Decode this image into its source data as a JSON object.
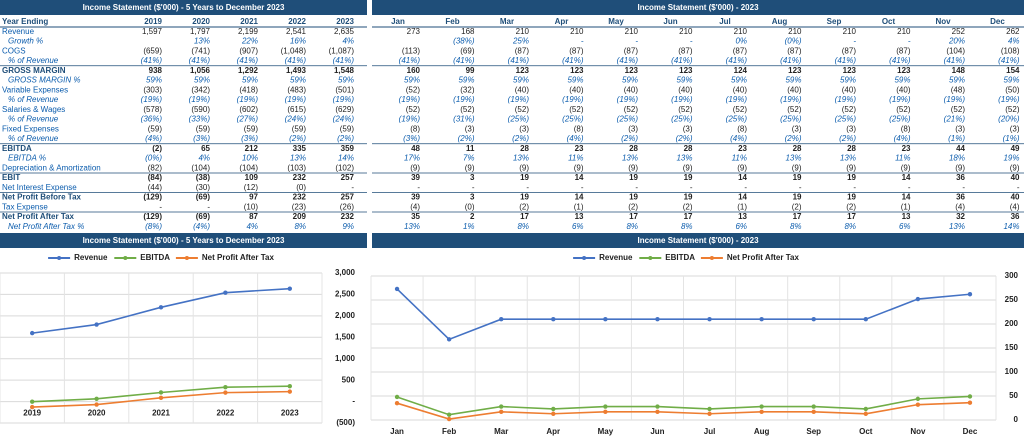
{
  "left_table": {
    "title": "Income Statement ($'000) - 5 Years to December 2023",
    "header": [
      "Year Ending",
      "2019",
      "2020",
      "2021",
      "2022",
      "2023"
    ],
    "rows": [
      [
        "Revenue",
        "1,597",
        "1,797",
        "2,199",
        "2,541",
        "2,635"
      ],
      [
        "Growth %",
        null,
        "13%",
        "22%",
        "16%",
        "4%"
      ],
      [
        "COGS",
        "(659)",
        "(741)",
        "(907)",
        "(1,048)",
        "(1,087)"
      ],
      [
        "% of Revenue",
        "(41%)",
        "(41%)",
        "(41%)",
        "(41%)",
        "(41%)"
      ],
      [
        "GROSS MARGIN",
        "938",
        "1,056",
        "1,292",
        "1,493",
        "1,548"
      ],
      [
        "GROSS MARGIN %",
        "59%",
        "59%",
        "59%",
        "59%",
        "59%"
      ],
      [
        "Variable Expenses",
        "(303)",
        "(342)",
        "(418)",
        "(483)",
        "(501)"
      ],
      [
        "% of Revenue",
        "(19%)",
        "(19%)",
        "(19%)",
        "(19%)",
        "(19%)"
      ],
      [
        "Salaries & Wages",
        "(578)",
        "(590)",
        "(602)",
        "(615)",
        "(629)"
      ],
      [
        "% of Revenue",
        "(36%)",
        "(33%)",
        "(27%)",
        "(24%)",
        "(24%)"
      ],
      [
        "Fixed Expenses",
        "(59)",
        "(59)",
        "(59)",
        "(59)",
        "(59)"
      ],
      [
        "% of Revenue",
        "(4%)",
        "(3%)",
        "(3%)",
        "(2%)",
        "(2%)"
      ],
      [
        "EBITDA",
        "(2)",
        "65",
        "212",
        "335",
        "359"
      ],
      [
        "EBITDA %",
        "(0%)",
        "4%",
        "10%",
        "13%",
        "14%"
      ],
      [
        "Depreciation & Amortization",
        "(82)",
        "(104)",
        "(104)",
        "(103)",
        "(102)"
      ],
      [
        "EBIT",
        "(84)",
        "(38)",
        "109",
        "232",
        "257"
      ],
      [
        "Net Interest Expense",
        "(44)",
        "(30)",
        "(12)",
        "(0)",
        "-"
      ],
      [
        "Net Profit Before Tax",
        "(129)",
        "(69)",
        "97",
        "232",
        "257"
      ],
      [
        "Tax Expense",
        "-",
        "-",
        "(10)",
        "(23)",
        "(26)"
      ],
      [
        "Net Profit After Tax",
        "(129)",
        "(69)",
        "87",
        "209",
        "232"
      ],
      [
        "Net Profit After Tax %",
        "(8%)",
        "(4%)",
        "4%",
        "8%",
        "9%"
      ]
    ]
  },
  "right_table": {
    "title": "Income Statement ($'000) - 2023",
    "header": [
      "Jan",
      "Feb",
      "Mar",
      "Apr",
      "May",
      "Jun",
      "Jul",
      "Aug",
      "Sep",
      "Oct",
      "Nov",
      "Dec"
    ],
    "rows": [
      [
        "273",
        "168",
        "210",
        "210",
        "210",
        "210",
        "210",
        "210",
        "210",
        "210",
        "252",
        "262"
      ],
      [
        null,
        "(38%)",
        "25%",
        "-",
        "-",
        "-",
        "0%",
        "(0%)",
        "-",
        "-",
        "20%",
        "4%"
      ],
      [
        "(113)",
        "(69)",
        "(87)",
        "(87)",
        "(87)",
        "(87)",
        "(87)",
        "(87)",
        "(87)",
        "(87)",
        "(104)",
        "(108)"
      ],
      [
        "(41%)",
        "(41%)",
        "(41%)",
        "(41%)",
        "(41%)",
        "(41%)",
        "(41%)",
        "(41%)",
        "(41%)",
        "(41%)",
        "(41%)",
        "(41%)"
      ],
      [
        "160",
        "99",
        "123",
        "123",
        "123",
        "123",
        "124",
        "123",
        "123",
        "123",
        "148",
        "154"
      ],
      [
        "59%",
        "59%",
        "59%",
        "59%",
        "59%",
        "59%",
        "59%",
        "59%",
        "59%",
        "59%",
        "59%",
        "59%"
      ],
      [
        "(52)",
        "(32)",
        "(40)",
        "(40)",
        "(40)",
        "(40)",
        "(40)",
        "(40)",
        "(40)",
        "(40)",
        "(48)",
        "(50)"
      ],
      [
        "(19%)",
        "(19%)",
        "(19%)",
        "(19%)",
        "(19%)",
        "(19%)",
        "(19%)",
        "(19%)",
        "(19%)",
        "(19%)",
        "(19%)",
        "(19%)"
      ],
      [
        "(52)",
        "(52)",
        "(52)",
        "(52)",
        "(52)",
        "(52)",
        "(52)",
        "(52)",
        "(52)",
        "(52)",
        "(52)",
        "(52)"
      ],
      [
        "(19%)",
        "(31%)",
        "(25%)",
        "(25%)",
        "(25%)",
        "(25%)",
        "(25%)",
        "(25%)",
        "(25%)",
        "(25%)",
        "(21%)",
        "(20%)"
      ],
      [
        "(8)",
        "(3)",
        "(3)",
        "(8)",
        "(3)",
        "(3)",
        "(8)",
        "(3)",
        "(3)",
        "(8)",
        "(3)",
        "(3)"
      ],
      [
        "(3%)",
        "(2%)",
        "(2%)",
        "(4%)",
        "(2%)",
        "(2%)",
        "(4%)",
        "(2%)",
        "(2%)",
        "(4%)",
        "(1%)",
        "(1%)"
      ],
      [
        "48",
        "11",
        "28",
        "23",
        "28",
        "28",
        "23",
        "28",
        "28",
        "23",
        "44",
        "49"
      ],
      [
        "17%",
        "7%",
        "13%",
        "11%",
        "13%",
        "13%",
        "11%",
        "13%",
        "13%",
        "11%",
        "18%",
        "19%"
      ],
      [
        "(9)",
        "(9)",
        "(9)",
        "(9)",
        "(9)",
        "(9)",
        "(9)",
        "(9)",
        "(9)",
        "(9)",
        "(9)",
        "(9)"
      ],
      [
        "39",
        "3",
        "19",
        "14",
        "19",
        "19",
        "14",
        "19",
        "19",
        "14",
        "36",
        "40"
      ],
      [
        "-",
        "-",
        "-",
        "-",
        "-",
        "-",
        "-",
        "-",
        "-",
        "-",
        "-",
        "-"
      ],
      [
        "39",
        "3",
        "19",
        "14",
        "19",
        "19",
        "14",
        "19",
        "19",
        "14",
        "36",
        "40"
      ],
      [
        "(4)",
        "(0)",
        "(2)",
        "(1)",
        "(2)",
        "(2)",
        "(1)",
        "(2)",
        "(2)",
        "(1)",
        "(4)",
        "(4)"
      ],
      [
        "35",
        "2",
        "17",
        "13",
        "17",
        "17",
        "13",
        "17",
        "17",
        "13",
        "32",
        "36"
      ],
      [
        "13%",
        "1%",
        "8%",
        "6%",
        "8%",
        "8%",
        "6%",
        "8%",
        "8%",
        "6%",
        "13%",
        "14%"
      ]
    ]
  },
  "chart_data": [
    {
      "type": "line",
      "title": "Income Statement ($'000) - 5 Years to December 2023",
      "categories": [
        "2019",
        "2020",
        "2021",
        "2022",
        "2023"
      ],
      "series": [
        {
          "name": "Revenue",
          "color": "#4472c4",
          "values": [
            1597,
            1797,
            2199,
            2541,
            2635
          ]
        },
        {
          "name": "EBITDA",
          "color": "#70ad47",
          "values": [
            -2,
            65,
            212,
            335,
            359
          ]
        },
        {
          "name": "Net Profit After Tax",
          "color": "#ed7d31",
          "values": [
            -129,
            -69,
            87,
            209,
            232
          ]
        }
      ],
      "ylim": [
        -500,
        3000
      ],
      "yticks": [
        {
          "value": -500,
          "label": "(500)"
        },
        {
          "value": 0,
          "label": "-"
        },
        500,
        {
          "value": 1000,
          "label": "1,000"
        },
        {
          "value": 1500,
          "label": "1,500"
        },
        {
          "value": 2000,
          "label": "2,000"
        },
        {
          "value": 2500,
          "label": "2,500"
        },
        {
          "value": 3000,
          "label": "3,000"
        }
      ],
      "grid": true,
      "legend": "top"
    },
    {
      "type": "line",
      "title": "Income Statement ($'000) - 2023",
      "categories": [
        "Jan",
        "Feb",
        "Mar",
        "Apr",
        "May",
        "Jun",
        "Jul",
        "Aug",
        "Sep",
        "Oct",
        "Nov",
        "Dec"
      ],
      "series": [
        {
          "name": "Revenue",
          "color": "#4472c4",
          "values": [
            273,
            168,
            210,
            210,
            210,
            210,
            210,
            210,
            210,
            210,
            252,
            262
          ]
        },
        {
          "name": "EBITDA",
          "color": "#70ad47",
          "values": [
            48,
            11,
            28,
            23,
            28,
            28,
            23,
            28,
            28,
            23,
            44,
            49
          ]
        },
        {
          "name": "Net Profit After Tax",
          "color": "#ed7d31",
          "values": [
            35,
            2,
            17,
            13,
            17,
            17,
            13,
            17,
            17,
            13,
            32,
            36
          ]
        }
      ],
      "ylim": [
        0,
        300
      ],
      "yticks": [
        0,
        50,
        100,
        150,
        200,
        250,
        300
      ],
      "grid": true,
      "legend": "top"
    }
  ]
}
